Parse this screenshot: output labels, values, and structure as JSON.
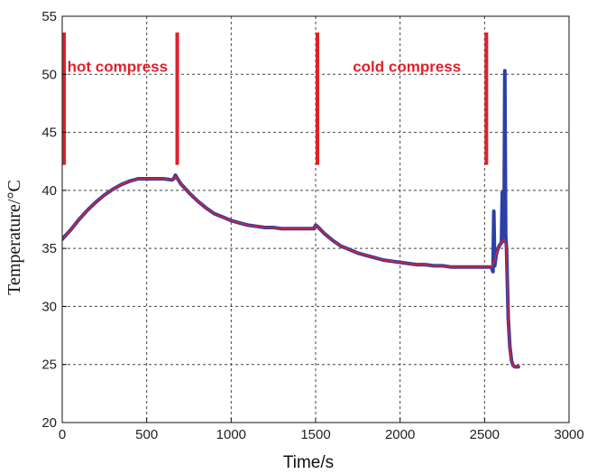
{
  "chart_data": {
    "type": "line",
    "title": "",
    "xlabel": "Time/s",
    "ylabel": "Temperature/°C",
    "xlim": [
      0,
      3000
    ],
    "ylim": [
      20,
      55
    ],
    "xticks": [
      "0",
      "500",
      "1000",
      "1500",
      "2000",
      "2500",
      "3000"
    ],
    "yticks": [
      "20",
      "25",
      "30",
      "35",
      "40",
      "45",
      "50",
      "55"
    ],
    "grid": true,
    "legend": "none",
    "colors": {
      "series_blue": "#2b3fa6",
      "series_red": "#d9202c",
      "markers": "#e0202b",
      "annotation": "#e0202b"
    },
    "annotations": [
      {
        "text": "hot compress",
        "x": 30,
        "y": 50.2
      },
      {
        "text": "cold compress",
        "x": 1720,
        "y": 50.2
      }
    ],
    "phase_markers": [
      {
        "x": 0,
        "y_from": 42.2,
        "y_to": 53.6
      },
      {
        "x": 670,
        "y_from": 42.2,
        "y_to": 53.6
      },
      {
        "x": 1500,
        "y_from": 42.2,
        "y_to": 53.6
      },
      {
        "x": 2500,
        "y_from": 42.2,
        "y_to": 53.6
      }
    ],
    "series": [
      {
        "color": "#2b3fa6",
        "x": [
          0,
          50,
          100,
          150,
          200,
          250,
          300,
          350,
          400,
          450,
          500,
          550,
          600,
          650,
          660,
          670,
          700,
          750,
          800,
          850,
          900,
          950,
          1000,
          1050,
          1100,
          1150,
          1200,
          1250,
          1300,
          1350,
          1400,
          1450,
          1490,
          1500,
          1510,
          1550,
          1600,
          1650,
          1700,
          1750,
          1800,
          1850,
          1900,
          1950,
          2000,
          2050,
          2100,
          2150,
          2200,
          2250,
          2300,
          2350,
          2400,
          2450,
          2500,
          2520,
          2540,
          2550,
          2555,
          2560,
          2565,
          2570,
          2580,
          2590,
          2600,
          2605,
          2610,
          2615,
          2620,
          2625,
          2630,
          2640,
          2650,
          2660,
          2670,
          2680,
          2690,
          2700
        ],
        "y": [
          35.8,
          36.6,
          37.5,
          38.3,
          39.0,
          39.6,
          40.1,
          40.5,
          40.8,
          41.0,
          41.0,
          41.0,
          41.0,
          40.9,
          41.0,
          41.3,
          40.6,
          39.8,
          39.1,
          38.5,
          38.0,
          37.7,
          37.4,
          37.2,
          37.0,
          36.9,
          36.8,
          36.8,
          36.7,
          36.7,
          36.7,
          36.7,
          36.7,
          37.0,
          36.9,
          36.3,
          35.7,
          35.2,
          34.9,
          34.6,
          34.4,
          34.2,
          34.0,
          33.9,
          33.8,
          33.7,
          33.6,
          33.6,
          33.5,
          33.5,
          33.4,
          33.4,
          33.4,
          33.4,
          33.4,
          33.4,
          33.4,
          33.0,
          38.2,
          33.5,
          34.0,
          34.5,
          35.0,
          35.3,
          35.5,
          39.8,
          35.6,
          35.8,
          50.3,
          36.0,
          35.0,
          29.0,
          26.5,
          25.3,
          24.9,
          24.8,
          24.8,
          24.8
        ]
      },
      {
        "color": "#d9202c",
        "x": [
          0,
          50,
          100,
          150,
          200,
          250,
          300,
          350,
          400,
          450,
          500,
          550,
          600,
          650,
          660,
          670,
          700,
          750,
          800,
          850,
          900,
          950,
          1000,
          1050,
          1100,
          1150,
          1200,
          1250,
          1300,
          1350,
          1400,
          1450,
          1490,
          1500,
          1510,
          1550,
          1600,
          1650,
          1700,
          1750,
          1800,
          1850,
          1900,
          1950,
          2000,
          2050,
          2100,
          2150,
          2200,
          2250,
          2300,
          2350,
          2400,
          2450,
          2500,
          2520,
          2540,
          2560,
          2570,
          2580,
          2590,
          2600,
          2610,
          2620,
          2630,
          2640,
          2650,
          2660,
          2670,
          2680,
          2690,
          2700
        ],
        "y": [
          35.8,
          36.6,
          37.5,
          38.3,
          39.0,
          39.6,
          40.1,
          40.5,
          40.8,
          41.0,
          41.0,
          41.0,
          41.0,
          40.9,
          41.0,
          41.2,
          40.6,
          39.8,
          39.1,
          38.5,
          38.0,
          37.7,
          37.4,
          37.2,
          37.0,
          36.9,
          36.8,
          36.8,
          36.7,
          36.7,
          36.7,
          36.7,
          36.7,
          37.0,
          36.9,
          36.3,
          35.7,
          35.2,
          34.9,
          34.6,
          34.4,
          34.2,
          34.0,
          33.9,
          33.8,
          33.7,
          33.6,
          33.6,
          33.5,
          33.5,
          33.4,
          33.4,
          33.4,
          33.4,
          33.4,
          33.4,
          33.4,
          34.0,
          34.5,
          35.0,
          35.3,
          35.5,
          35.7,
          35.8,
          35.0,
          29.0,
          26.5,
          25.3,
          24.9,
          24.8,
          24.8,
          24.8
        ]
      }
    ]
  }
}
